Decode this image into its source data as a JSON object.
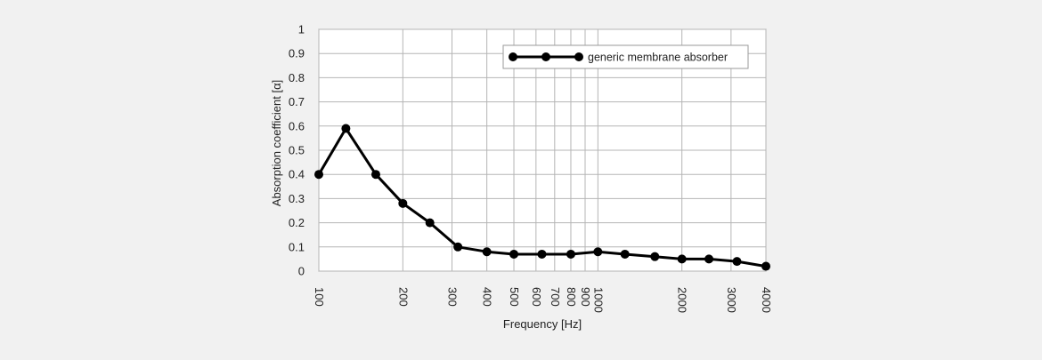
{
  "chart_data": {
    "type": "line",
    "xscale": "log",
    "xlabel": "Frequency [Hz]",
    "ylabel": "Absorption coefficient [α]",
    "xlim": [
      100,
      4000
    ],
    "ylim": [
      0,
      1
    ],
    "grid": true,
    "legend_position": "top-right",
    "x_ticks": [
      100,
      200,
      300,
      400,
      500,
      600,
      700,
      800,
      900,
      1000,
      2000,
      3000,
      4000
    ],
    "x_tick_labels": [
      "100",
      "200",
      "300",
      "400",
      "500",
      "600",
      "700",
      "800",
      "900",
      "1000",
      "2000",
      "3000",
      "4000"
    ],
    "y_ticks": [
      0,
      0.1,
      0.2,
      0.3,
      0.4,
      0.5,
      0.6,
      0.7,
      0.8,
      0.9,
      1
    ],
    "y_tick_labels": [
      "0",
      "0.1",
      "0.2",
      "0.3",
      "0.4",
      "0.5",
      "0.6",
      "0.7",
      "0.8",
      "0.9",
      "1"
    ],
    "series": [
      {
        "name": "generic membrane absorber",
        "color": "#000000",
        "x": [
          100,
          125,
          160,
          200,
          250,
          315,
          400,
          500,
          630,
          800,
          1000,
          1250,
          1600,
          2000,
          2500,
          3150,
          4000
        ],
        "y": [
          0.4,
          0.59,
          0.4,
          0.28,
          0.2,
          0.1,
          0.08,
          0.07,
          0.07,
          0.07,
          0.08,
          0.07,
          0.06,
          0.05,
          0.05,
          0.04,
          0.02
        ]
      }
    ]
  }
}
